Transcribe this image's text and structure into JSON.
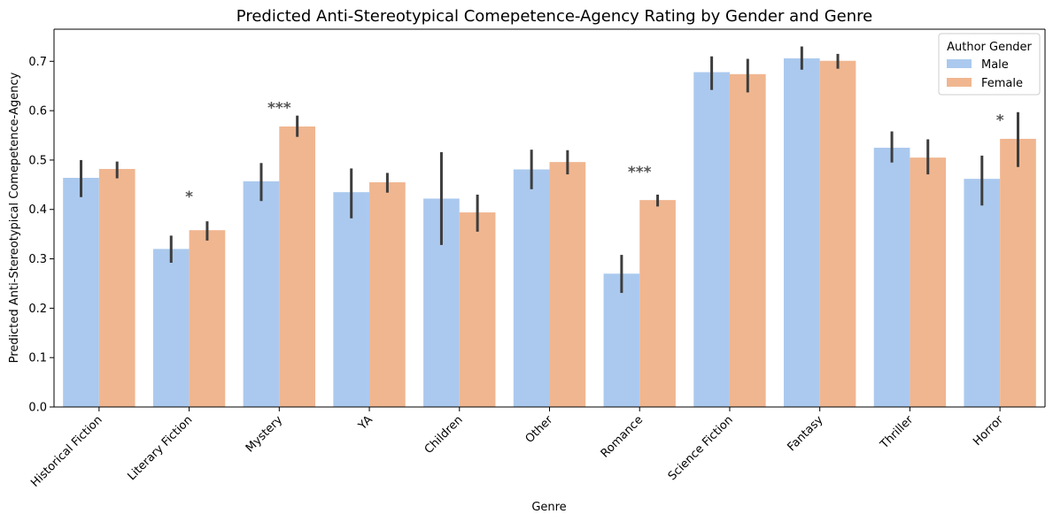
{
  "chart_data": {
    "type": "bar",
    "title": "Predicted Anti-Stereotypical Comepetence-Agency Rating by Gender and Genre",
    "xlabel": "Genre",
    "ylabel": "Predicted Anti-Stereotypical Comepetence-Agency",
    "ylim": [
      0,
      0.765
    ],
    "yticks": [
      "0.0",
      "0.1",
      "0.2",
      "0.3",
      "0.4",
      "0.5",
      "0.6",
      "0.7"
    ],
    "grid": false,
    "legend": {
      "title": "Author Gender",
      "placement": "top-right"
    },
    "categories": [
      "Historical Fiction",
      "Literary Fiction",
      "Mystery",
      "YA",
      "Children",
      "Other",
      "Romance",
      "Science Fiction",
      "Fantasy",
      "Thriller",
      "Horror"
    ],
    "series": [
      {
        "name": "Male",
        "color": "#abc9ee",
        "values": [
          0.464,
          0.32,
          0.457,
          0.435,
          0.422,
          0.481,
          0.27,
          0.678,
          0.706,
          0.525,
          0.462
        ],
        "ci_low": [
          0.425,
          0.292,
          0.417,
          0.382,
          0.328,
          0.441,
          0.231,
          0.642,
          0.683,
          0.495,
          0.408
        ],
        "ci_high": [
          0.5,
          0.347,
          0.494,
          0.483,
          0.516,
          0.521,
          0.308,
          0.71,
          0.73,
          0.558,
          0.509
        ]
      },
      {
        "name": "Female",
        "color": "#f0b690",
        "values": [
          0.482,
          0.358,
          0.568,
          0.455,
          0.394,
          0.496,
          0.419,
          0.674,
          0.701,
          0.505,
          0.543
        ],
        "ci_low": [
          0.463,
          0.337,
          0.547,
          0.434,
          0.355,
          0.471,
          0.406,
          0.637,
          0.685,
          0.471,
          0.486
        ],
        "ci_high": [
          0.497,
          0.376,
          0.59,
          0.474,
          0.43,
          0.52,
          0.43,
          0.705,
          0.715,
          0.542,
          0.597
        ]
      }
    ],
    "annotations": [
      {
        "category": "Literary Fiction",
        "text": "*",
        "y": 0.43
      },
      {
        "category": "Mystery",
        "text": "***",
        "y": 0.61
      },
      {
        "category": "Romance",
        "text": "***",
        "y": 0.48
      },
      {
        "category": "Horror",
        "text": "*",
        "y": 0.585
      }
    ]
  }
}
